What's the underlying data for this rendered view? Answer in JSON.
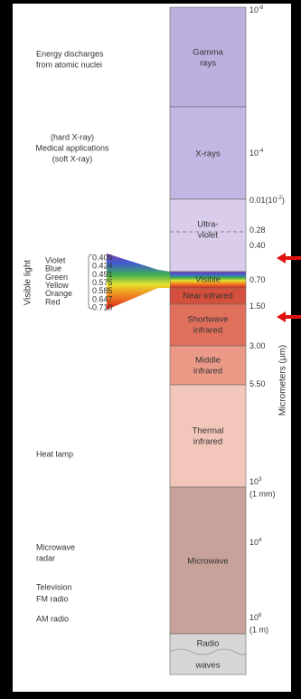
{
  "spectrum": [
    {
      "lines": [
        "Gamma",
        "rays"
      ]
    },
    {
      "lines": [
        "X-rays"
      ]
    },
    {
      "lines": [
        "Ultra-",
        "violet"
      ]
    },
    {
      "lines": [
        "Visible"
      ]
    },
    {
      "lines": [
        "Near infrared"
      ]
    },
    {
      "lines": [
        "Shortwave",
        "infrared"
      ]
    },
    {
      "lines": [
        "Middle",
        "infrared"
      ]
    },
    {
      "lines": [
        "Thermal",
        "infrared"
      ]
    },
    {
      "lines": [
        "Microwave"
      ]
    },
    {
      "lines": [
        "Radio",
        "waves"
      ]
    }
  ],
  "scale_labels": [
    {
      "base": "10",
      "exp": "-8"
    },
    {
      "base": "10",
      "exp": "-4"
    },
    {
      "text": "0.01(10",
      "exp": "-2",
      "after": ")"
    },
    {
      "text": "0.28"
    },
    {
      "text": "0.40"
    },
    {
      "text": "0.70"
    },
    {
      "text": "1.50"
    },
    {
      "text": "3.00"
    },
    {
      "text": "5.50"
    },
    {
      "base": "10",
      "exp": "3",
      "second": "(1 mm)"
    },
    {
      "base": "10",
      "exp": "4"
    },
    {
      "base": "10",
      "exp": "6",
      "second": "(1 m)"
    }
  ],
  "axis_title": "Micrometers (μm)",
  "left_labels": [
    {
      "lines": [
        "Energy discharges",
        "from atomic nuclei"
      ]
    },
    {
      "lines": [
        "(hard X-ray)",
        "Medical applications",
        "(soft X-ray)"
      ]
    },
    {
      "lines": [
        "Heat lamp"
      ]
    },
    {
      "lines": [
        "Microwave",
        "radar"
      ]
    },
    {
      "lines": [
        "Television",
        "FM radio"
      ]
    },
    {
      "lines": [
        "AM radio"
      ]
    }
  ],
  "visible_light": {
    "title": "Visible light",
    "colors": [
      {
        "name": "Violet",
        "wavelength": "0.400"
      },
      {
        "name": "Blue",
        "wavelength": "0.424"
      },
      {
        "name": "Green",
        "wavelength": "0.491"
      },
      {
        "name": "Yellow",
        "wavelength": "0.575"
      },
      {
        "name": "Orange",
        "wavelength": "0.585"
      },
      {
        "name": "Red",
        "wavelength": "0.647"
      },
      {
        "name": "",
        "wavelength": "0.710"
      }
    ]
  }
}
